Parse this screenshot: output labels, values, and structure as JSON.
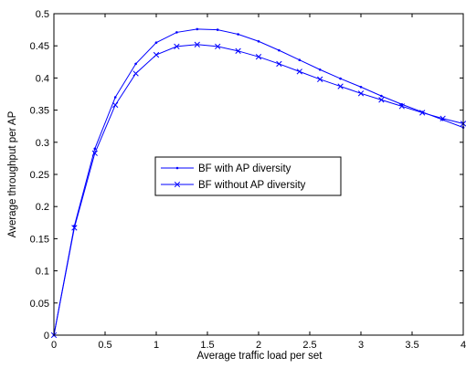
{
  "chart_data": {
    "type": "line",
    "title": "",
    "xlabel": "Average traffic load per set",
    "ylabel": "Average throughput per AP",
    "xlim": [
      0,
      4
    ],
    "ylim": [
      0,
      0.5
    ],
    "xticks": [
      0,
      0.5,
      1,
      1.5,
      2,
      2.5,
      3,
      3.5,
      4
    ],
    "yticks": [
      0,
      0.05,
      0.1,
      0.15,
      0.2,
      0.25,
      0.3,
      0.35,
      0.4,
      0.45,
      0.5
    ],
    "xtick_labels": [
      "0",
      "0.5",
      "1",
      "1.5",
      "2",
      "2.5",
      "3",
      "3.5",
      "4"
    ],
    "ytick_labels": [
      "0",
      "0.05",
      "0.1",
      "0.15",
      "0.2",
      "0.25",
      "0.3",
      "0.35",
      "0.4",
      "0.45",
      "0.5"
    ],
    "grid": false,
    "legend_position": "center",
    "x": [
      0,
      0.2,
      0.4,
      0.6,
      0.8,
      1.0,
      1.2,
      1.4,
      1.6,
      1.8,
      2.0,
      2.2,
      2.4,
      2.6,
      2.8,
      3.0,
      3.2,
      3.4,
      3.6,
      3.8,
      4.0
    ],
    "series": [
      {
        "name": "BF with AP diversity",
        "marker": "dot",
        "color": "#0000ff",
        "values": [
          0,
          0.17,
          0.29,
          0.37,
          0.422,
          0.455,
          0.471,
          0.476,
          0.475,
          0.468,
          0.457,
          0.443,
          0.428,
          0.413,
          0.399,
          0.386,
          0.372,
          0.359,
          0.347,
          0.335,
          0.323
        ]
      },
      {
        "name": "BF without AP diversity",
        "marker": "x",
        "color": "#0000ff",
        "values": [
          0,
          0.167,
          0.283,
          0.358,
          0.407,
          0.436,
          0.449,
          0.452,
          0.449,
          0.442,
          0.433,
          0.422,
          0.41,
          0.398,
          0.387,
          0.376,
          0.366,
          0.356,
          0.346,
          0.337,
          0.329
        ]
      }
    ]
  }
}
